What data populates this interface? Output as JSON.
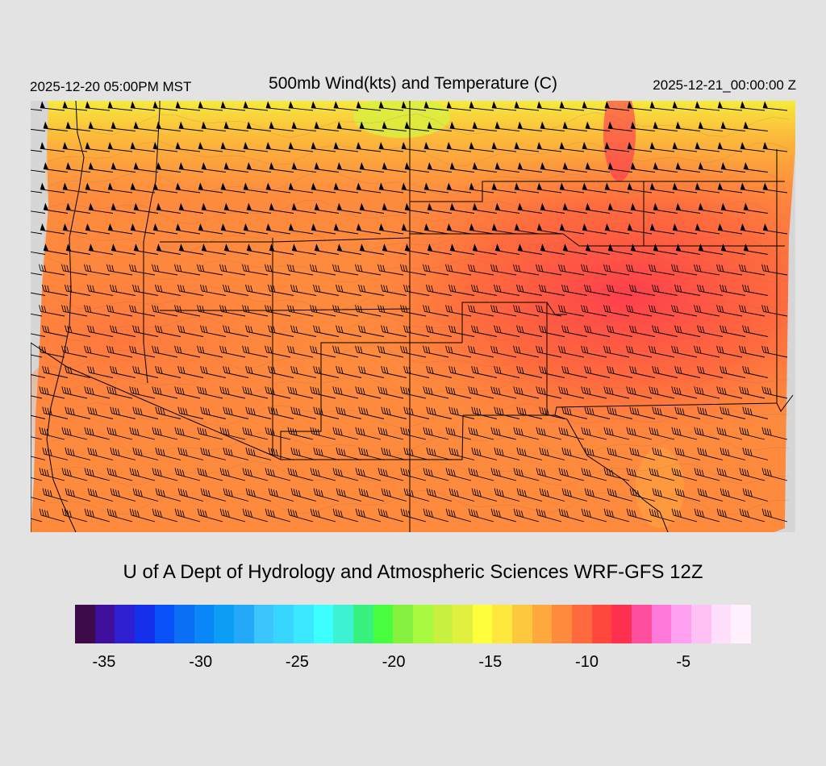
{
  "header": {
    "valid_local": "2025-12-20 05:00PM MST",
    "title": "500mb Wind(kts) and Temperature (C)",
    "valid_utc": "2025-12-21_00:00:00 Z"
  },
  "credit": "U of A Dept of Hydrology and Atmospheric Sciences WRF-GFS 12Z",
  "colorbar": {
    "colors": [
      "#3d0a4a",
      "#3f0f9c",
      "#2e1fd0",
      "#1430ea",
      "#0850f8",
      "#0b6ff6",
      "#0a86f6",
      "#0c9ef5",
      "#24a8f8",
      "#3cc4fc",
      "#36d6ff",
      "#3ae8ff",
      "#3effff",
      "#3cf2d2",
      "#38f07e",
      "#48fe3e",
      "#86f03e",
      "#a8fa40",
      "#c8f040",
      "#e0f03e",
      "#fefe3a",
      "#fee83e",
      "#fec83e",
      "#fea83e",
      "#fe8a3e",
      "#fe6a3e",
      "#fe483e",
      "#fe3050",
      "#ff50a0",
      "#ff7ad8",
      "#ffa0f0",
      "#ffc0f4",
      "#ffe0fc",
      "#fff0fe"
    ],
    "tick_labels": [
      "-35",
      "-30",
      "-25",
      "-20",
      "-15",
      "-10",
      "-5"
    ],
    "tick_values": [
      -35,
      -30,
      -25,
      -20,
      -15,
      -10,
      -5
    ],
    "min": -36,
    "max": -1
  },
  "map": {
    "field": "500mb temperature",
    "units": "C",
    "wind_units": "kts",
    "overlays": [
      "wind barbs",
      "state borders",
      "county outlines",
      "terrain contours",
      "coastline"
    ]
  }
}
